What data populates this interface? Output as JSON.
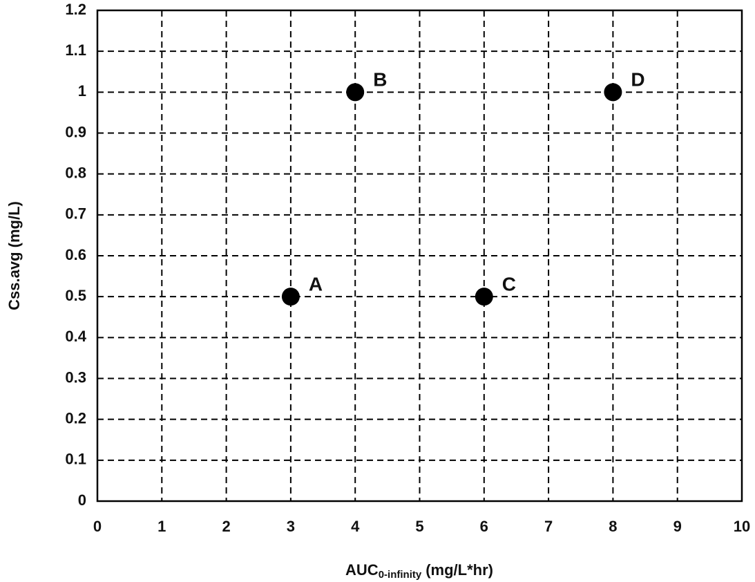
{
  "chart_data": {
    "type": "scatter",
    "x_label": [
      "AUC",
      "0-infinity",
      "(mg/L*hr)"
    ],
    "y_label": "Css.avg (mg/L)",
    "x": [
      3,
      4,
      6,
      8
    ],
    "values": [
      0.5,
      1,
      0.5,
      1
    ],
    "point_labels": [
      "A",
      "B",
      "C",
      "D"
    ],
    "color": "#000000",
    "xlim": [
      0,
      10
    ],
    "xticks": [
      0,
      1,
      2,
      3,
      4,
      5,
      6,
      7,
      8,
      9,
      10
    ],
    "ylim": [
      0,
      1.2
    ],
    "yticks": [
      0,
      0.1,
      0.2,
      0.3,
      0.4,
      0.5,
      0.6,
      0.7,
      0.8,
      0.9,
      1,
      1.1,
      1.2
    ],
    "grid": true
  }
}
